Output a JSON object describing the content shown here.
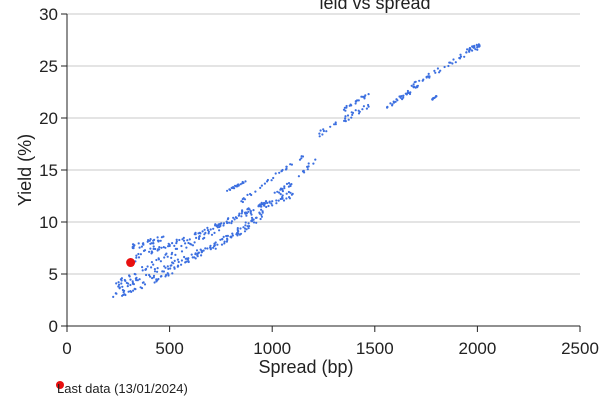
{
  "chart_data": {
    "type": "scatter",
    "title": "                  ield vs spread",
    "xlabel": "Spread (bp)",
    "ylabel": "Yield (%)",
    "xlim": [
      0,
      2500
    ],
    "ylim": [
      0,
      30
    ],
    "x_ticks": [
      0,
      500,
      1000,
      1500,
      2000,
      2500
    ],
    "y_ticks": [
      0,
      5,
      10,
      15,
      20,
      25,
      30
    ],
    "grid": "horizontal",
    "colors": {
      "history": "#3c6fe0",
      "last": "#e81010",
      "grid": "#c8c8c8",
      "axis": "#222222"
    },
    "legend": {
      "placement": "bottom-left",
      "entries": [
        {
          "label": "Last data (13/01/2024)",
          "color": "#e81010",
          "marker": "circle"
        }
      ]
    },
    "series": [
      {
        "role": "history",
        "segments": [
          {
            "x": [
              225,
              300,
              380,
              460,
              540,
              620,
              700,
              780,
              860,
              940,
              1000
            ],
            "y": [
              2.8,
              3.3,
              4.0,
              4.8,
              5.7,
              6.6,
              7.5,
              8.4,
              9.5,
              10.8,
              12.0
            ],
            "n": 11,
            "spread": 0.35
          },
          {
            "x": [
              240,
              330,
              420,
              510,
              600,
              690,
              780,
              870,
              960,
              1050,
              1100
            ],
            "y": [
              4.1,
              5.0,
              5.9,
              6.9,
              7.9,
              8.9,
              9.9,
              10.8,
              11.6,
              12.3,
              12.7
            ],
            "n": 11,
            "spread": 0.35
          },
          {
            "x": [
              250,
              320,
              400,
              480,
              560,
              640,
              720,
              800,
              880,
              950
            ],
            "y": [
              3.8,
              4.3,
              4.9,
              5.6,
              6.3,
              7.0,
              7.8,
              8.6,
              9.6,
              10.5
            ],
            "n": 10,
            "spread": 0.35
          },
          {
            "x": [
              300,
              360,
              430,
              500,
              570,
              650,
              730,
              810,
              890,
              970,
              1050,
              1130,
              1210
            ],
            "y": [
              6.0,
              6.9,
              7.4,
              7.8,
              8.2,
              8.9,
              9.6,
              10.4,
              11.2,
              12.0,
              13.1,
              14.4,
              16.0
            ],
            "n": 13,
            "spread": 0.3
          },
          {
            "x": [
              320,
              370,
              420,
              470
            ],
            "y": [
              7.6,
              7.9,
              8.2,
              8.6
            ],
            "n": 4,
            "spread": 0.3
          },
          {
            "x": [
              850,
              950,
              1050,
              1150
            ],
            "y": [
              12.0,
              13.5,
              15.0,
              16.3
            ],
            "n": 4,
            "spread": 0.2
          },
          {
            "x": [
              780,
              830,
              870
            ],
            "y": [
              13.0,
              13.5,
              13.9
            ],
            "n": 3,
            "spread": 0.1
          },
          {
            "x": [
              1230,
              1310,
              1390,
              1470
            ],
            "y": [
              18.5,
              19.4,
              20.3,
              21.1
            ],
            "n": 4,
            "spread": 0.3
          },
          {
            "x": [
              1350,
              1410,
              1470
            ],
            "y": [
              20.8,
              21.6,
              22.3
            ],
            "n": 3,
            "spread": 0.2
          },
          {
            "x": [
              1560,
              1610,
              1660,
              1710
            ],
            "y": [
              21.0,
              21.7,
              22.4,
              23.1
            ],
            "n": 4,
            "spread": 0.25
          },
          {
            "x": [
              1680,
              1760,
              1840,
              1920,
              2010
            ],
            "y": [
              23.1,
              24.0,
              24.9,
              25.9,
              26.9
            ],
            "n": 5,
            "spread": 0.25
          },
          {
            "x": [
              1950,
              1980,
              2010
            ],
            "y": [
              26.6,
              26.8,
              27.0
            ],
            "n": 3,
            "spread": 0.15
          },
          {
            "x": [
              1780,
              1800
            ],
            "y": [
              21.8,
              22.1
            ],
            "n": 2,
            "spread": 0.05
          }
        ]
      },
      {
        "role": "last",
        "x": [
          310
        ],
        "y": [
          6.1
        ]
      }
    ]
  }
}
